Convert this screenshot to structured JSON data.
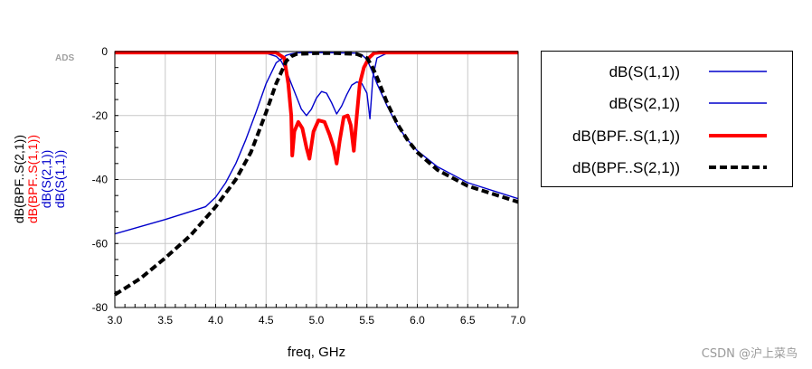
{
  "chart_data": {
    "type": "line",
    "xlabel": "freq, GHz",
    "ylabel_lines": [
      {
        "text": "dB(BPF..S(2,1))",
        "color": "#000000"
      },
      {
        "text": "dB(BPF..S(1,1))",
        "color": "#ff0000"
      },
      {
        "text": "dB(S(2,1))",
        "color": "#0000cc"
      },
      {
        "text": "dB(S(1,1))",
        "color": "#0000cc"
      }
    ],
    "xlim": [
      3.0,
      7.0
    ],
    "ylim": [
      -80,
      0
    ],
    "xticks": [
      "3.0",
      "3.5",
      "4.0",
      "4.5",
      "5.0",
      "5.5",
      "6.0",
      "6.5",
      "7.0"
    ],
    "yticks": [
      "0",
      "-20",
      "-40",
      "-60",
      "-80"
    ],
    "grid": true,
    "series": [
      {
        "name": "dB(S(1,1))",
        "color": "#0000cc",
        "style": "thin",
        "x": [
          3.0,
          4.5,
          4.6,
          4.65,
          4.7,
          4.75,
          4.8,
          4.85,
          4.9,
          4.95,
          5.0,
          5.05,
          5.1,
          5.15,
          5.2,
          5.25,
          5.3,
          5.35,
          5.4,
          5.45,
          5.5,
          5.53,
          5.56,
          5.6,
          5.7,
          7.0
        ],
        "y": [
          -0.3,
          -0.5,
          -1.5,
          -3,
          -6,
          -10,
          -14,
          -18,
          -20,
          -18,
          -14.5,
          -12.5,
          -13,
          -16,
          -19.5,
          -17,
          -13.5,
          -10.5,
          -9.5,
          -10,
          -13,
          -21,
          -8,
          -2,
          -0.5,
          -0.3
        ]
      },
      {
        "name": "dB(S(2,1))",
        "color": "#0000cc",
        "style": "thin",
        "x": [
          3.0,
          3.5,
          3.75,
          3.9,
          4.0,
          4.1,
          4.2,
          4.3,
          4.4,
          4.5,
          4.6,
          4.7,
          4.75,
          4.8,
          5.0,
          5.2,
          5.4,
          5.45,
          5.5,
          5.55,
          5.6,
          5.7,
          5.8,
          5.9,
          6.0,
          6.2,
          6.5,
          7.0
        ],
        "y": [
          -57,
          -52.5,
          -50,
          -48.5,
          -45.5,
          -41,
          -35,
          -27.5,
          -19,
          -10,
          -3.5,
          -1.2,
          -0.7,
          -0.4,
          -0.3,
          -0.4,
          -0.5,
          -1,
          -2.5,
          -6,
          -10,
          -17,
          -23,
          -27.5,
          -31,
          -36,
          -41,
          -46
        ]
      },
      {
        "name": "dB(BPF..S(1,1))",
        "color": "#ff0000",
        "style": "thick",
        "x": [
          3.0,
          4.6,
          4.68,
          4.72,
          4.75,
          4.76,
          4.78,
          4.82,
          4.86,
          4.9,
          4.93,
          4.97,
          5.02,
          5.08,
          5.13,
          5.17,
          5.2,
          5.23,
          5.27,
          5.31,
          5.34,
          5.37,
          5.4,
          5.43,
          5.47,
          5.52,
          5.57,
          5.62,
          5.7,
          7.0
        ],
        "y": [
          -0.3,
          -0.3,
          -2,
          -10,
          -20,
          -32.5,
          -25,
          -22,
          -24,
          -30,
          -33.5,
          -25,
          -21.5,
          -22,
          -26,
          -30,
          -35,
          -28,
          -20.5,
          -20,
          -23,
          -31,
          -20,
          -10,
          -5,
          -2,
          -0.5,
          -0.3,
          -0.3,
          -0.3
        ]
      },
      {
        "name": "dB(BPF..S(2,1))",
        "color": "#000000",
        "style": "dashed",
        "x": [
          3.0,
          3.25,
          3.5,
          3.75,
          4.0,
          4.2,
          4.35,
          4.5,
          4.6,
          4.7,
          4.75,
          4.8,
          5.0,
          5.2,
          5.4,
          5.5,
          5.55,
          5.6,
          5.7,
          5.8,
          5.9,
          6.0,
          6.2,
          6.5,
          7.0
        ],
        "y": [
          -76,
          -71,
          -64.5,
          -57.5,
          -48.5,
          -40,
          -31.5,
          -19,
          -10,
          -3,
          -1.5,
          -0.8,
          -0.5,
          -0.5,
          -0.8,
          -2,
          -4.5,
          -8,
          -16,
          -22.5,
          -27.5,
          -31.5,
          -37,
          -42,
          -47
        ]
      }
    ]
  },
  "legend": [
    {
      "label": "dB(S(1,1))",
      "color": "#0000cc",
      "style": "thin"
    },
    {
      "label": "dB(S(2,1))",
      "color": "#0000cc",
      "style": "thin"
    },
    {
      "label": "dB(BPF..S(1,1))",
      "color": "#ff0000",
      "style": "thick"
    },
    {
      "label": "dB(BPF..S(2,1))",
      "color": "#000000",
      "style": "dashed"
    }
  ],
  "ads_tag": "ADS",
  "watermark": "CSDN @沪上菜鸟"
}
